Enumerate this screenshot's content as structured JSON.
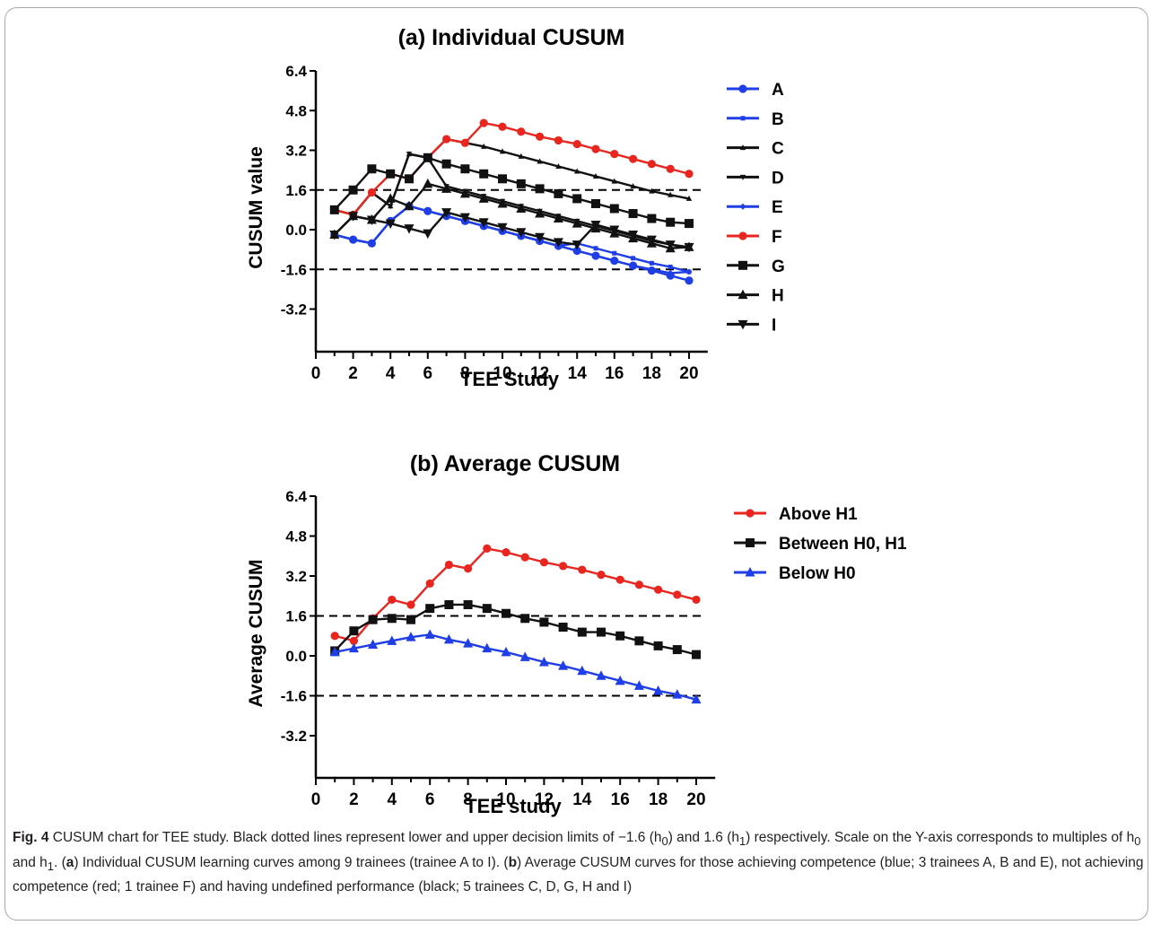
{
  "chart_data": [
    {
      "type": "line",
      "title": "(a) Individual CUSUM",
      "xlabel": "TEE Study",
      "ylabel": "CUSUM value",
      "xlim": [
        0,
        21
      ],
      "ylim": [
        -4.5,
        6.4
      ],
      "xticks": [
        0,
        2,
        4,
        6,
        8,
        10,
        12,
        14,
        16,
        18,
        20
      ],
      "yticks": [
        -3.2,
        -1.6,
        0.0,
        1.6,
        3.2,
        4.8,
        6.4
      ],
      "ytick_labels": [
        "-3.2",
        "-1.6",
        "0.0",
        "1.6",
        "3.2",
        "4.8",
        "6.4"
      ],
      "reference_lines": [
        1.6,
        -1.6
      ],
      "legend": "right",
      "grid": false,
      "series": [
        {
          "name": "A",
          "color": "#1f3ee6",
          "marker": "dot",
          "x": [
            1,
            2,
            3,
            4,
            5,
            6,
            7,
            8,
            9,
            10,
            11,
            12,
            13,
            14,
            15,
            16,
            17,
            18,
            19,
            20
          ],
          "values": [
            -0.2,
            -0.4,
            -0.55,
            0.35,
            0.95,
            0.75,
            0.55,
            0.35,
            0.15,
            -0.05,
            -0.25,
            -0.45,
            -0.65,
            -0.85,
            -1.05,
            -1.25,
            -1.45,
            -1.65,
            -1.85,
            -2.05
          ]
        },
        {
          "name": "B",
          "color": "#1f3ee6",
          "marker": "square-small",
          "x": [
            1,
            2,
            3,
            4,
            5,
            6,
            7,
            8,
            9,
            10,
            11,
            12,
            13,
            14,
            15,
            16,
            17,
            18,
            19,
            20
          ],
          "values": [
            -0.2,
            -0.4,
            -0.55,
            0.35,
            0.95,
            0.75,
            0.55,
            0.35,
            0.15,
            -0.05,
            -0.25,
            -0.45,
            -0.65,
            -0.55,
            -0.75,
            -0.95,
            -1.15,
            -1.35,
            -1.5,
            -1.7
          ]
        },
        {
          "name": "C",
          "color": "#111111",
          "marker": "triangle-small",
          "x": [
            1,
            2,
            3,
            4,
            5,
            6,
            7,
            8,
            9,
            10,
            11,
            12,
            13,
            14,
            15,
            16,
            17,
            18,
            19,
            20
          ],
          "values": [
            0.8,
            0.6,
            1.5,
            0.95,
            3.05,
            2.9,
            3.65,
            3.5,
            3.35,
            3.15,
            2.95,
            2.75,
            2.55,
            2.35,
            2.15,
            1.95,
            1.75,
            1.55,
            1.4,
            1.25
          ]
        },
        {
          "name": "D",
          "color": "#111111",
          "marker": "triangle-down-small",
          "x": [
            1,
            2,
            3,
            4,
            5,
            6,
            7,
            8,
            9,
            10,
            11,
            12,
            13,
            14,
            15,
            16,
            17,
            18,
            19,
            20
          ],
          "values": [
            0.8,
            0.6,
            1.5,
            0.95,
            3.05,
            2.9,
            1.75,
            1.55,
            1.35,
            1.15,
            0.95,
            0.75,
            0.55,
            0.35,
            0.15,
            -0.05,
            -0.25,
            -0.45,
            -0.6,
            -0.75
          ]
        },
        {
          "name": "E",
          "color": "#1f3ee6",
          "marker": "diamond-small",
          "x": [
            1,
            2,
            3,
            4,
            5,
            6,
            7,
            8,
            9,
            10,
            11,
            12,
            13,
            14,
            15,
            16,
            17,
            18,
            19,
            20
          ],
          "values": [
            -0.2,
            -0.4,
            -0.55,
            0.35,
            0.95,
            0.75,
            0.55,
            0.35,
            0.15,
            -0.05,
            -0.25,
            -0.45,
            -0.65,
            -0.85,
            -1.05,
            -1.25,
            -1.45,
            -1.6,
            -1.75,
            -1.7
          ]
        },
        {
          "name": "F",
          "color": "#e8261f",
          "marker": "dot",
          "x": [
            1,
            2,
            3,
            4,
            5,
            6,
            7,
            8,
            9,
            10,
            11,
            12,
            13,
            14,
            15,
            16,
            17,
            18,
            19,
            20
          ],
          "values": [
            0.8,
            0.6,
            1.5,
            2.25,
            2.05,
            2.9,
            3.65,
            3.5,
            4.3,
            4.15,
            3.95,
            3.75,
            3.6,
            3.45,
            3.25,
            3.05,
            2.85,
            2.65,
            2.45,
            2.25
          ]
        },
        {
          "name": "G",
          "color": "#111111",
          "marker": "square",
          "x": [
            1,
            2,
            3,
            4,
            5,
            6,
            7,
            8,
            9,
            10,
            11,
            12,
            13,
            14,
            15,
            16,
            17,
            18,
            19,
            20
          ],
          "values": [
            0.8,
            1.6,
            2.45,
            2.25,
            2.05,
            2.9,
            2.65,
            2.45,
            2.25,
            2.05,
            1.85,
            1.65,
            1.45,
            1.25,
            1.05,
            0.85,
            0.65,
            0.45,
            0.3,
            0.25
          ]
        },
        {
          "name": "H",
          "color": "#111111",
          "marker": "triangle",
          "x": [
            1,
            2,
            3,
            4,
            5,
            6,
            7,
            8,
            9,
            10,
            11,
            12,
            13,
            14,
            15,
            16,
            17,
            18,
            19,
            20
          ],
          "values": [
            -0.2,
            0.55,
            0.4,
            1.25,
            0.95,
            1.85,
            1.65,
            1.45,
            1.25,
            1.05,
            0.85,
            0.65,
            0.45,
            0.25,
            0.05,
            -0.15,
            -0.35,
            -0.55,
            -0.75,
            -0.7
          ]
        },
        {
          "name": "I",
          "color": "#111111",
          "marker": "triangle-down",
          "x": [
            1,
            2,
            3,
            4,
            5,
            6,
            7,
            8,
            9,
            10,
            11,
            12,
            13,
            14,
            15,
            16,
            17,
            18,
            19,
            20
          ],
          "values": [
            -0.2,
            0.55,
            0.4,
            0.25,
            0.05,
            -0.15,
            0.7,
            0.5,
            0.3,
            0.1,
            -0.1,
            -0.3,
            -0.5,
            -0.6,
            0.2,
            0.0,
            -0.2,
            -0.4,
            -0.6,
            -0.7
          ]
        }
      ]
    },
    {
      "type": "line",
      "title": "(b) Average CUSUM",
      "xlabel": "TEE study",
      "ylabel": "Average CUSUM",
      "xlim": [
        0,
        21
      ],
      "ylim": [
        -4.5,
        6.4
      ],
      "xticks": [
        0,
        2,
        4,
        6,
        8,
        10,
        12,
        14,
        16,
        18,
        20
      ],
      "yticks": [
        -3.2,
        -1.6,
        0.0,
        1.6,
        3.2,
        4.8,
        6.4
      ],
      "ytick_labels": [
        "-3.2",
        "-1.6",
        "0.0",
        "1.6",
        "3.2",
        "4.8",
        "6.4"
      ],
      "reference_lines": [
        1.6,
        -1.6
      ],
      "legend": "right",
      "grid": false,
      "series": [
        {
          "name": "Above H1",
          "color": "#e8261f",
          "marker": "dot",
          "x": [
            1,
            2,
            3,
            4,
            5,
            6,
            7,
            8,
            9,
            10,
            11,
            12,
            13,
            14,
            15,
            16,
            17,
            18,
            19,
            20
          ],
          "values": [
            0.8,
            0.6,
            1.5,
            2.25,
            2.05,
            2.9,
            3.65,
            3.5,
            4.3,
            4.15,
            3.95,
            3.75,
            3.6,
            3.45,
            3.25,
            3.05,
            2.85,
            2.65,
            2.45,
            2.25
          ]
        },
        {
          "name": "Between H0, H1",
          "color": "#111111",
          "marker": "square",
          "x": [
            1,
            2,
            3,
            4,
            5,
            6,
            7,
            8,
            9,
            10,
            11,
            12,
            13,
            14,
            15,
            16,
            17,
            18,
            19,
            20
          ],
          "values": [
            0.2,
            1.0,
            1.45,
            1.5,
            1.45,
            1.9,
            2.05,
            2.05,
            1.9,
            1.7,
            1.5,
            1.35,
            1.15,
            0.95,
            0.95,
            0.8,
            0.6,
            0.4,
            0.25,
            0.05
          ]
        },
        {
          "name": "Below H0",
          "color": "#1f3ee6",
          "marker": "triangle",
          "x": [
            1,
            2,
            3,
            4,
            5,
            6,
            7,
            8,
            9,
            10,
            11,
            12,
            13,
            14,
            15,
            16,
            17,
            18,
            19,
            20
          ],
          "values": [
            0.15,
            0.3,
            0.45,
            0.6,
            0.75,
            0.85,
            0.65,
            0.5,
            0.3,
            0.15,
            -0.05,
            -0.25,
            -0.4,
            -0.6,
            -0.8,
            -1.0,
            -1.2,
            -1.4,
            -1.55,
            -1.75
          ]
        }
      ]
    }
  ],
  "caption": {
    "label": "Fig. 4",
    "text_1": "  CUSUM chart for TEE study. Black dotted lines represent lower and upper decision limits of −1.6 (h",
    "sub_0": "0",
    "text_2": ") and 1.6 (h",
    "sub_1": "1",
    "text_3": ") respectively. Scale on the Y-axis corresponds to multiples of h",
    "sub_2": "0",
    "text_4": " and h",
    "sub_3": "1",
    "text_5": ". (",
    "bold_a": "a",
    "text_6": ") Individual CUSUM learning curves among 9 trainees (trainee A to I). (",
    "bold_b": "b",
    "text_7": ") Average CUSUM curves for those achieving competence (blue; 3 trainees A, B and E), not achieving competence (red; 1 trainee F) and having undefined performance (black; 5 trainees C, D, G, H and I)"
  }
}
